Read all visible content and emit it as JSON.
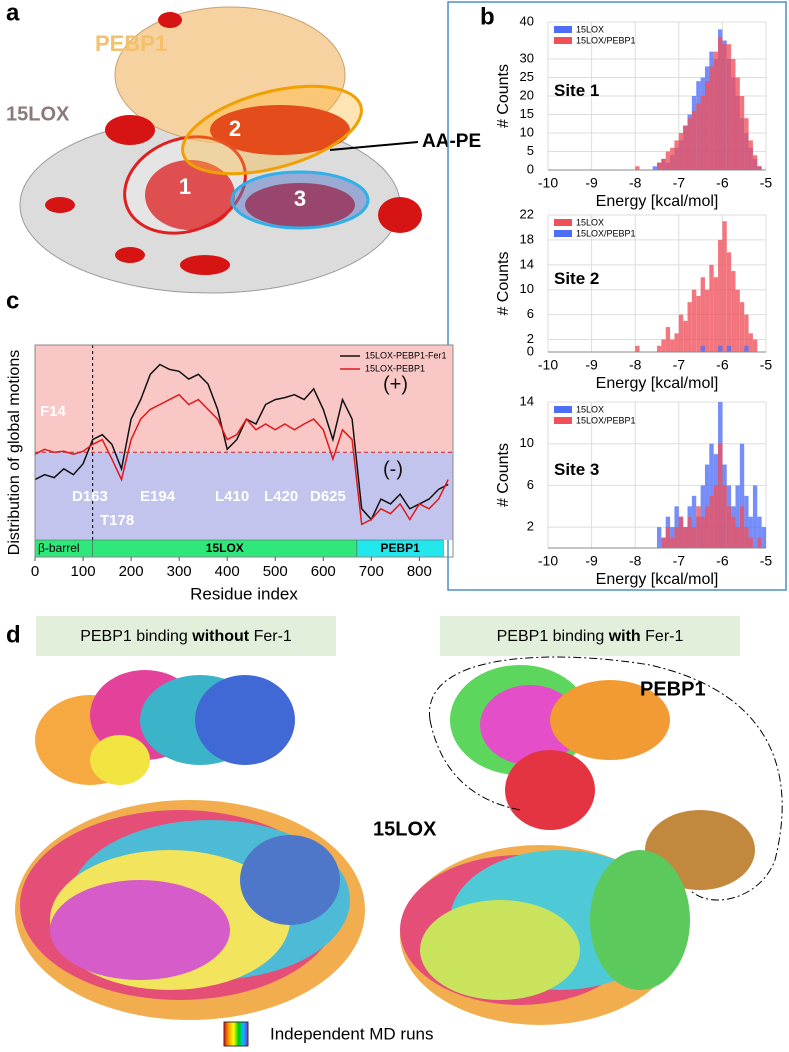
{
  "panel_labels": [
    "a",
    "b",
    "c",
    "d"
  ],
  "panel_a": {
    "pebp1": "PEBP1",
    "lox": "15LOX",
    "aape": "AA-PE",
    "sites": [
      "1",
      "2",
      "3"
    ]
  },
  "panel_d": {
    "left_title": [
      "PEBP1 binding ",
      "without",
      " Fer-1"
    ],
    "right_title": [
      "PEBP1 binding ",
      "with",
      " Fer-1"
    ],
    "pebp1": "PEBP1",
    "lox": "15LOX",
    "legend": "Independent MD runs"
  },
  "chart_data": [
    {
      "type": "histogram",
      "title": "Site 1",
      "xlabel": "Energy [kcal/mol]",
      "ylabel": "# Counts",
      "bins": [
        -8,
        -7.9,
        -7.8,
        -7.7,
        -7.6,
        -7.5,
        -7.4,
        -7.3,
        -7.2,
        -7.1,
        -7,
        -6.9,
        -6.8,
        -6.7,
        -6.6,
        -6.5,
        -6.4,
        -6.3,
        -6.2,
        -6.1,
        -6,
        -5.9,
        -5.8,
        -5.7,
        -5.6,
        -5.5,
        -5.4,
        -5.3,
        -5.2,
        -5.1,
        -5
      ],
      "series": [
        {
          "name": "15LOX",
          "color": "#4f6ef7",
          "values": [
            0,
            0,
            0,
            0,
            1,
            2,
            3,
            2,
            4,
            6,
            8,
            12,
            15,
            20,
            24,
            25,
            28,
            32,
            30,
            38,
            35,
            30,
            25,
            20,
            14,
            10,
            6,
            3,
            1,
            0
          ]
        },
        {
          "name": "15LOX/PEBP1",
          "color": "#f0505a",
          "values": [
            1,
            0,
            0,
            0,
            0,
            2,
            3,
            5,
            6,
            8,
            10,
            12,
            14,
            16,
            18,
            20,
            24,
            28,
            32,
            36,
            34,
            34,
            30,
            25,
            20,
            14,
            8,
            4,
            1,
            0
          ]
        }
      ],
      "xlim": [
        -10,
        -5
      ],
      "xticks": [
        -10,
        -9,
        -8,
        -7,
        -6,
        -5
      ],
      "ylim": [
        0,
        40
      ],
      "yticks": [
        0,
        5,
        10,
        15,
        20,
        25,
        30,
        40
      ],
      "grid": true
    },
    {
      "type": "histogram",
      "title": "Site 2",
      "xlabel": "Energy [kcal/mol]",
      "ylabel": "# Counts",
      "bins": [
        -8,
        -7.9,
        -7.8,
        -7.7,
        -7.6,
        -7.5,
        -7.4,
        -7.3,
        -7.2,
        -7.1,
        -7,
        -6.9,
        -6.8,
        -6.7,
        -6.6,
        -6.5,
        -6.4,
        -6.3,
        -6.2,
        -6.1,
        -6,
        -5.9,
        -5.8,
        -5.7,
        -5.6,
        -5.5,
        -5.4,
        -5.3,
        -5.2,
        -5.1,
        -5
      ],
      "series": [
        {
          "name": "15LOX",
          "color": "#f0505a",
          "values": [
            1,
            0,
            0,
            0,
            0,
            1,
            2,
            4,
            2,
            3,
            6,
            5,
            8,
            10,
            9,
            12,
            10,
            14,
            12,
            18,
            21,
            16,
            13,
            10,
            8,
            6,
            3,
            2,
            0,
            0
          ]
        },
        {
          "name": "15LOX/PEBP1",
          "color": "#4f6ef7",
          "values": [
            0,
            0,
            0,
            0,
            0,
            0,
            0,
            0,
            0,
            0,
            0,
            0,
            0,
            0,
            0,
            1,
            0,
            0,
            0,
            1,
            0,
            1,
            0,
            0,
            0,
            1,
            0,
            0,
            0,
            0
          ]
        }
      ],
      "xlim": [
        -10,
        -5
      ],
      "xticks": [
        -10,
        -9,
        -8,
        -7,
        -6,
        -5
      ],
      "ylim": [
        0,
        22
      ],
      "yticks": [
        0,
        2,
        6,
        10,
        14,
        18,
        22
      ],
      "grid": true
    },
    {
      "type": "histogram",
      "title": "Site 3",
      "xlabel": "Energy [kcal/mol]",
      "ylabel": "# Counts",
      "bins": [
        -8,
        -7.9,
        -7.8,
        -7.7,
        -7.6,
        -7.5,
        -7.4,
        -7.3,
        -7.2,
        -7.1,
        -7,
        -6.9,
        -6.8,
        -6.7,
        -6.6,
        -6.5,
        -6.4,
        -6.3,
        -6.2,
        -6.1,
        -6,
        -5.9,
        -5.8,
        -5.7,
        -5.6,
        -5.5,
        -5.4,
        -5.3,
        -5.2,
        -5.1,
        -5
      ],
      "series": [
        {
          "name": "15LOX",
          "color": "#4f6ef7",
          "values": [
            0,
            0,
            0,
            0,
            0,
            2,
            1,
            3,
            2,
            4,
            3,
            2,
            4,
            5,
            3,
            6,
            8,
            10,
            9,
            14,
            8,
            6,
            4,
            6,
            10,
            5,
            3,
            6,
            3,
            2
          ]
        },
        {
          "name": "15LOX/PEBP1",
          "color": "#f0505a",
          "values": [
            0,
            0,
            0,
            0,
            0,
            0,
            1,
            2,
            1,
            2,
            3,
            2,
            3,
            2,
            4,
            3,
            4,
            5,
            6,
            10,
            6,
            4,
            3,
            2,
            4,
            2,
            1,
            0,
            1,
            0
          ]
        }
      ],
      "xlim": [
        -10,
        -5
      ],
      "xticks": [
        -10,
        -9,
        -8,
        -7,
        -6,
        -5
      ],
      "ylim": [
        0,
        14
      ],
      "yticks": [
        2,
        6,
        10,
        14
      ],
      "grid": true
    },
    {
      "type": "line",
      "xlabel": "Residue index",
      "ylabel": "Distribution of global motions",
      "x": [
        0,
        20,
        40,
        60,
        80,
        100,
        120,
        140,
        160,
        180,
        200,
        220,
        240,
        260,
        280,
        300,
        320,
        340,
        360,
        380,
        400,
        420,
        440,
        460,
        480,
        500,
        520,
        540,
        560,
        580,
        600,
        620,
        640,
        660,
        680,
        700,
        720,
        740,
        760,
        780,
        800,
        820,
        840,
        860
      ],
      "series": [
        {
          "name": "15LOX-PEBP1-Fer1",
          "color": "#111111",
          "values": [
            -0.28,
            -0.23,
            -0.26,
            -0.17,
            -0.23,
            -0.12,
            0.13,
            0.18,
            0.08,
            -0.17,
            0.34,
            0.54,
            0.8,
            0.9,
            0.85,
            0.83,
            0.75,
            0.8,
            0.7,
            0.44,
            0.03,
            0.13,
            0.34,
            0.29,
            0.49,
            0.54,
            0.56,
            0.59,
            0.54,
            0.65,
            0.44,
            0.13,
            0.54,
            0.34,
            -0.58,
            -0.69,
            -0.48,
            -0.53,
            -0.43,
            -0.58,
            -0.53,
            -0.48,
            -0.38,
            -0.33
          ]
        },
        {
          "name": "15LOX-PEBP1",
          "color": "#e01818",
          "values": [
            -0.02,
            0.03,
            0,
            0.01,
            -0.02,
            0.01,
            0.08,
            0.13,
            -0.07,
            -0.28,
            0.13,
            0.34,
            0.44,
            0.49,
            0.54,
            0.59,
            0.49,
            0.54,
            0.44,
            0.34,
            0.13,
            0.18,
            0.34,
            0.23,
            0.29,
            0.23,
            0.29,
            0.23,
            0.29,
            0.34,
            0.23,
            -0.07,
            0.23,
            0.13,
            -0.74,
            -0.69,
            -0.58,
            -0.63,
            -0.53,
            -0.69,
            -0.53,
            -0.58,
            -0.48,
            -0.28
          ]
        }
      ],
      "xlim": [
        0,
        870
      ],
      "xticks": [
        0,
        100,
        200,
        300,
        400,
        500,
        600,
        700,
        800
      ],
      "ylim": [
        -0.9,
        1.1
      ],
      "annotations": [
        "F14",
        "D163",
        "T178",
        "E194",
        "L410",
        "L420",
        "D625"
      ],
      "signs": [
        "(+)",
        "(-)"
      ],
      "regions": [
        {
          "label": "β-barrel",
          "start": 0,
          "end": 120,
          "color": "#2ee87c"
        },
        {
          "label": "15LOX",
          "start": 120,
          "end": 670,
          "color": "#2ee87c"
        },
        {
          "label": "PEBP1",
          "start": 670,
          "end": 850,
          "color": "#22e8ee"
        }
      ]
    }
  ]
}
